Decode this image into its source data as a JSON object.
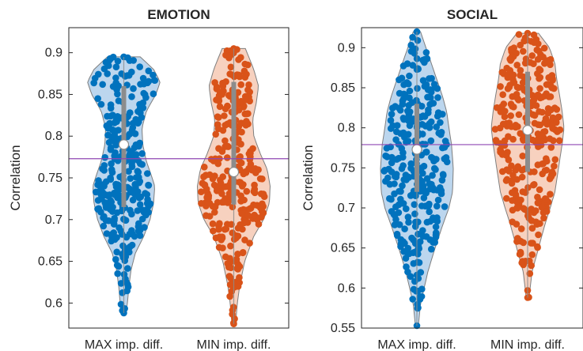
{
  "chart_data": [
    {
      "type": "violin",
      "title": "EMOTION",
      "ylabel": "Correlation",
      "ylim": [
        0.57,
        0.93
      ],
      "yticks": [
        0.6,
        0.65,
        0.7,
        0.75,
        0.8,
        0.85,
        0.9
      ],
      "ytick_labels": [
        "0.6",
        "0.65",
        "0.7",
        "0.75",
        "0.8",
        "0.85",
        "0.9"
      ],
      "categories": [
        "MAX imp. diff.",
        "MIN imp. diff."
      ],
      "reference_line": 0.773,
      "series": [
        {
          "name": "MAX imp. diff.",
          "min": 0.588,
          "max": 0.895,
          "q1": 0.715,
          "q3": 0.86,
          "median": 0.79,
          "density": [
            [
              0.588,
              0.06
            ],
            [
              0.6,
              0.1
            ],
            [
              0.62,
              0.14
            ],
            [
              0.64,
              0.2
            ],
            [
              0.66,
              0.32
            ],
            [
              0.68,
              0.55
            ],
            [
              0.7,
              0.72
            ],
            [
              0.72,
              0.82
            ],
            [
              0.74,
              0.85
            ],
            [
              0.75,
              0.78
            ],
            [
              0.77,
              0.62
            ],
            [
              0.79,
              0.52
            ],
            [
              0.81,
              0.5
            ],
            [
              0.83,
              0.62
            ],
            [
              0.85,
              0.88
            ],
            [
              0.865,
              1.0
            ],
            [
              0.88,
              0.82
            ],
            [
              0.895,
              0.45
            ]
          ]
        },
        {
          "name": "MIN imp. diff.",
          "min": 0.575,
          "max": 0.905,
          "q1": 0.718,
          "q3": 0.865,
          "median": 0.757,
          "density": [
            [
              0.575,
              0.05
            ],
            [
              0.6,
              0.1
            ],
            [
              0.62,
              0.16
            ],
            [
              0.65,
              0.3
            ],
            [
              0.68,
              0.55
            ],
            [
              0.7,
              0.82
            ],
            [
              0.72,
              0.98
            ],
            [
              0.74,
              1.0
            ],
            [
              0.76,
              0.92
            ],
            [
              0.78,
              0.72
            ],
            [
              0.8,
              0.55
            ],
            [
              0.82,
              0.52
            ],
            [
              0.84,
              0.62
            ],
            [
              0.86,
              0.68
            ],
            [
              0.88,
              0.55
            ],
            [
              0.905,
              0.32
            ]
          ]
        }
      ]
    },
    {
      "type": "violin",
      "title": "SOCIAL",
      "ylabel": "Correlation",
      "ylim": [
        0.55,
        0.925
      ],
      "yticks": [
        0.55,
        0.6,
        0.65,
        0.7,
        0.75,
        0.8,
        0.85,
        0.9
      ],
      "ytick_labels": [
        "0.55",
        "0.6",
        "0.65",
        "0.7",
        "0.75",
        "0.8",
        "0.85",
        "0.9"
      ],
      "categories": [
        "MAX imp. diff.",
        "MIN imp. diff."
      ],
      "reference_line": 0.779,
      "series": [
        {
          "name": "MAX imp. diff.",
          "min": 0.553,
          "max": 0.92,
          "q1": 0.72,
          "q3": 0.83,
          "median": 0.773,
          "density": [
            [
              0.553,
              0.04
            ],
            [
              0.58,
              0.1
            ],
            [
              0.62,
              0.3
            ],
            [
              0.65,
              0.5
            ],
            [
              0.68,
              0.72
            ],
            [
              0.7,
              0.88
            ],
            [
              0.72,
              0.98
            ],
            [
              0.75,
              1.0
            ],
            [
              0.78,
              0.95
            ],
            [
              0.8,
              0.88
            ],
            [
              0.82,
              0.82
            ],
            [
              0.84,
              0.7
            ],
            [
              0.86,
              0.55
            ],
            [
              0.88,
              0.4
            ],
            [
              0.9,
              0.25
            ],
            [
              0.92,
              0.1
            ]
          ]
        },
        {
          "name": "MIN imp. diff.",
          "min": 0.588,
          "max": 0.918,
          "q1": 0.745,
          "q3": 0.87,
          "median": 0.797,
          "density": [
            [
              0.588,
              0.04
            ],
            [
              0.62,
              0.12
            ],
            [
              0.65,
              0.3
            ],
            [
              0.68,
              0.48
            ],
            [
              0.7,
              0.62
            ],
            [
              0.72,
              0.75
            ],
            [
              0.75,
              0.85
            ],
            [
              0.78,
              0.95
            ],
            [
              0.8,
              1.0
            ],
            [
              0.82,
              0.95
            ],
            [
              0.84,
              0.88
            ],
            [
              0.86,
              0.8
            ],
            [
              0.88,
              0.75
            ],
            [
              0.9,
              0.6
            ],
            [
              0.918,
              0.3
            ]
          ]
        }
      ]
    }
  ],
  "colors": {
    "max_fill": "#bcd6ee",
    "max_dot": "#0072bd",
    "min_fill": "#f7d1bf",
    "min_dot": "#d95319",
    "outline": "#7f7f7f",
    "box": "#8c8c8c",
    "refline": "#8f47b3",
    "axis": "#262626"
  }
}
